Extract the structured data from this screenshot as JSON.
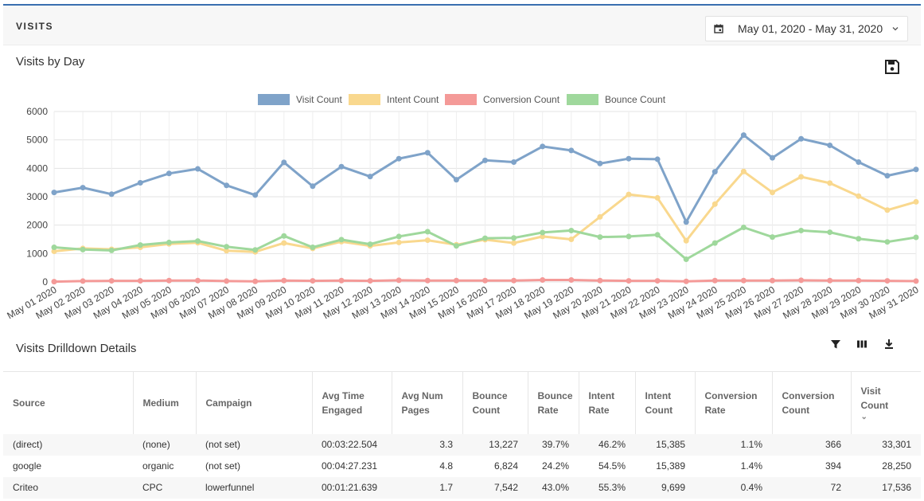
{
  "header": {
    "title": "VISITS"
  },
  "date_range": {
    "label": "May 01, 2020 - May 31, 2020"
  },
  "chart_section": {
    "title": "Visits by Day"
  },
  "chart_data": {
    "type": "line",
    "categories": [
      "May 01 2020",
      "May 02 2020",
      "May 03 2020",
      "May 04 2020",
      "May 05 2020",
      "May 06 2020",
      "May 07 2020",
      "May 08 2020",
      "May 09 2020",
      "May 10 2020",
      "May 11 2020",
      "May 12 2020",
      "May 13 2020",
      "May 14 2020",
      "May 15 2020",
      "May 16 2020",
      "May 17 2020",
      "May 18 2020",
      "May 19 2020",
      "May 20 2020",
      "May 21 2020",
      "May 22 2020",
      "May 23 2020",
      "May 24 2020",
      "May 25 2020",
      "May 26 2020",
      "May 27 2020",
      "May 28 2020",
      "May 29 2020",
      "May 30 2020",
      "May 31 2020"
    ],
    "ylim": [
      0,
      6000
    ],
    "yticks": [
      0,
      1000,
      2000,
      3000,
      4000,
      5000,
      6000
    ],
    "grid": true,
    "legend_position": "top",
    "series": [
      {
        "name": "Visit Count",
        "color": "#7fa3c9",
        "values": [
          3150,
          3320,
          3090,
          3490,
          3820,
          3980,
          3400,
          3060,
          4210,
          3370,
          4060,
          3710,
          4340,
          4550,
          3600,
          4280,
          4220,
          4770,
          4630,
          4170,
          4340,
          4320,
          2110,
          3880,
          5170,
          4370,
          5040,
          4810,
          4220,
          3740,
          3960
        ]
      },
      {
        "name": "Intent Count",
        "color": "#f9d88e",
        "values": [
          1080,
          1180,
          1150,
          1220,
          1340,
          1380,
          1100,
          1060,
          1370,
          1180,
          1420,
          1270,
          1390,
          1470,
          1310,
          1490,
          1370,
          1600,
          1500,
          2290,
          3080,
          2960,
          1450,
          2740,
          3890,
          3150,
          3700,
          3480,
          3020,
          2530,
          2820
        ]
      },
      {
        "name": "Conversion Count",
        "color": "#f49a98",
        "values": [
          10,
          30,
          40,
          40,
          50,
          50,
          30,
          20,
          50,
          40,
          50,
          40,
          60,
          50,
          50,
          50,
          50,
          70,
          70,
          50,
          40,
          40,
          20,
          50,
          50,
          50,
          60,
          50,
          50,
          40,
          30
        ]
      },
      {
        "name": "Bounce Count",
        "color": "#9fd89c",
        "values": [
          1220,
          1140,
          1110,
          1300,
          1390,
          1440,
          1240,
          1130,
          1620,
          1220,
          1490,
          1330,
          1600,
          1770,
          1270,
          1540,
          1550,
          1740,
          1810,
          1580,
          1600,
          1660,
          800,
          1370,
          1920,
          1580,
          1810,
          1750,
          1520,
          1410,
          1570
        ]
      }
    ]
  },
  "drilldown": {
    "title": "Visits Drilldown Details",
    "columns": [
      {
        "line1": "Source",
        "line2": ""
      },
      {
        "line1": "Medium",
        "line2": ""
      },
      {
        "line1": "Campaign",
        "line2": ""
      },
      {
        "line1": "Avg Time",
        "line2": "Engaged"
      },
      {
        "line1": "Avg Num",
        "line2": "Pages"
      },
      {
        "line1": "Bounce",
        "line2": "Count"
      },
      {
        "line1": "Bounce",
        "line2": "Rate"
      },
      {
        "line1": "Intent",
        "line2": "Rate"
      },
      {
        "line1": "Intent",
        "line2": "Count"
      },
      {
        "line1": "Conversion",
        "line2": "Rate"
      },
      {
        "line1": "Conversion",
        "line2": "Count"
      },
      {
        "line1": "Visit",
        "line2": "Count"
      }
    ],
    "rows": [
      [
        "(direct)",
        "(none)",
        "(not set)",
        "00:03:22.504",
        "3.3",
        "13,227",
        "39.7%",
        "46.2%",
        "15,385",
        "1.1%",
        "366",
        "33,301"
      ],
      [
        "google",
        "organic",
        "(not set)",
        "00:04:27.231",
        "4.8",
        "6,824",
        "24.2%",
        "54.5%",
        "15,389",
        "1.4%",
        "394",
        "28,250"
      ],
      [
        "Criteo",
        "CPC",
        "lowerfunnel",
        "00:01:21.639",
        "1.7",
        "7,542",
        "43.0%",
        "55.3%",
        "9,699",
        "0.4%",
        "72",
        "17,536"
      ]
    ]
  },
  "icons": {
    "calendar": "calendar-icon",
    "chevron": "chevron-down-icon",
    "save": "save-icon",
    "filter": "filter-icon",
    "columns": "columns-icon",
    "download": "download-icon",
    "sort": "sort-desc-icon"
  }
}
